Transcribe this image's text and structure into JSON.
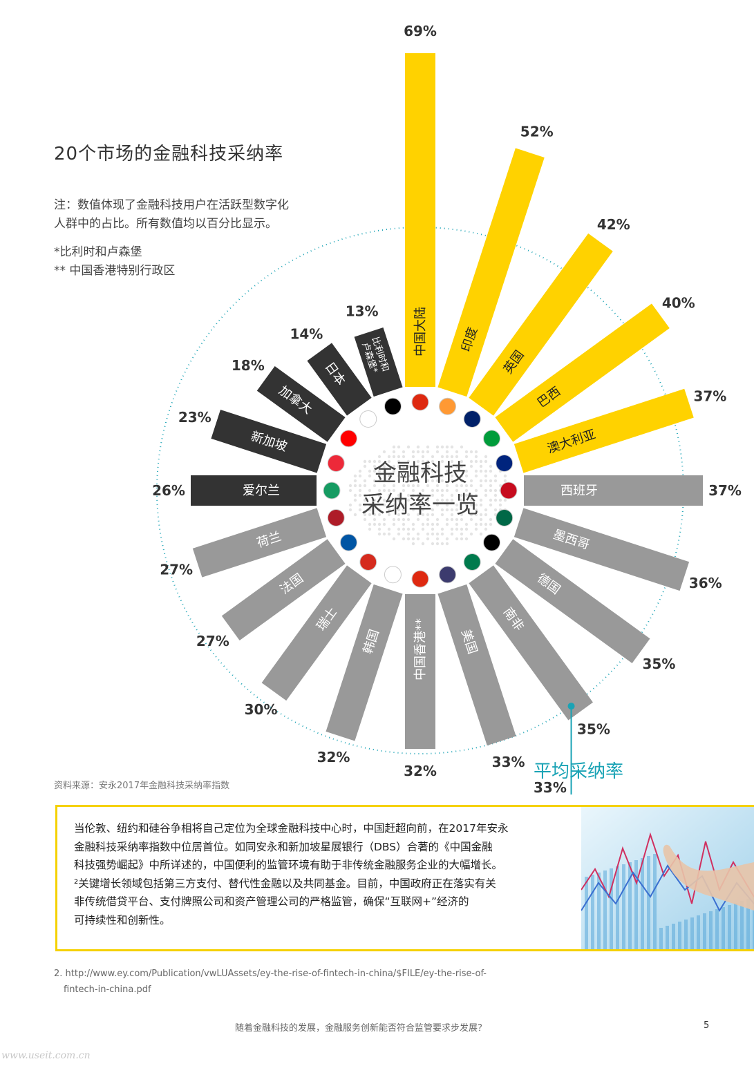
{
  "header": {
    "title": "20个市场的金融科技采纳率",
    "note_line1": "注：数值体现了金融科技用户在活跃型数字化",
    "note_line2": "人群中的占比。所有数值均以百分比显示。",
    "footnote_star1": "*比利时和卢森堡",
    "footnote_star2": "** 中国香港特别行政区"
  },
  "center": {
    "line1": "金融科技",
    "line2": "采纳率一览"
  },
  "colors": {
    "top": "#ffd200",
    "mid": "#333333",
    "low": "#999999",
    "accent": "#1aa3b5",
    "border": "#f5d100"
  },
  "chart_data": {
    "type": "bar",
    "categories": [
      "中国大陆",
      "印度",
      "英国",
      "巴西",
      "澳大利亚",
      "西班牙",
      "墨西哥",
      "德国",
      "南非",
      "美国",
      "中国香港**",
      "韩国",
      "瑞士",
      "法国",
      "荷兰",
      "爱尔兰",
      "新加坡",
      "加拿大",
      "日本",
      "比利时和卢森堡*"
    ],
    "values": [
      69,
      52,
      42,
      40,
      37,
      37,
      36,
      35,
      35,
      33,
      32,
      32,
      30,
      27,
      27,
      26,
      23,
      18,
      14,
      13
    ],
    "value_labels": [
      "69%",
      "52%",
      "42%",
      "40%",
      "37%",
      "37%",
      "36%",
      "35%",
      "35%",
      "33%",
      "32%",
      "32%",
      "30%",
      "27%",
      "27%",
      "26%",
      "23%",
      "18%",
      "14%",
      "13%"
    ],
    "bar_label_lines": [
      [
        "中国大陆"
      ],
      [
        "印度"
      ],
      [
        "英国"
      ],
      [
        "巴西"
      ],
      [
        "澳大利亚"
      ],
      [
        "西班牙"
      ],
      [
        "墨西哥"
      ],
      [
        "德国"
      ],
      [
        "南非"
      ],
      [
        "美国"
      ],
      [
        "中国香港**"
      ],
      [
        "韩国"
      ],
      [
        "瑞士"
      ],
      [
        "法国"
      ],
      [
        "荷兰"
      ],
      [
        "爱尔兰"
      ],
      [
        "新加坡"
      ],
      [
        "加拿大"
      ],
      [
        "日本"
      ],
      [
        "比利时和",
        "卢森堡*"
      ]
    ],
    "flag_icons": [
      "china-flag-icon",
      "india-flag-icon",
      "uk-flag-icon",
      "brazil-flag-icon",
      "australia-flag-icon",
      "spain-flag-icon",
      "mexico-flag-icon",
      "germany-flag-icon",
      "south-africa-flag-icon",
      "usa-flag-icon",
      "hong-kong-flag-icon",
      "korea-flag-icon",
      "switzerland-flag-icon",
      "france-flag-icon",
      "netherlands-flag-icon",
      "ireland-flag-icon",
      "singapore-flag-icon",
      "canada-flag-icon",
      "japan-flag-icon",
      "belgium-luxembourg-flag-icon"
    ],
    "average": 33
  },
  "average": {
    "label": "平均采纳率",
    "value": "33%"
  },
  "source": "资料来源：安永2017年金融科技采纳率指数",
  "body": {
    "lines": [
      "当伦敦、纽约和硅谷争相将自己定位为全球金融科技中心时，中国赶超向前，在2017年安永",
      "金融科技采纳率指数中位居首位。如同安永和新加坡星展银行（DBS）合著的《中国金融",
      "科技强势崛起》中所详述的，中国便利的监管环境有助于非传统金融服务企业的大幅增长。",
      "²关键增长领域包括第三方支付、替代性金融以及共同基金。目前，中国政府正在落实有关",
      "非传统借贷平台、支付牌照公司和资产管理公司的严格监管，确保“互联网+”经济的",
      "可持续性和创新性。"
    ]
  },
  "footnote": {
    "line1": "2. http://www.ey.com/Publication/vwLUAssets/ey-the-rise-of-fintech-in-china/$FILE/ey-the-rise-of-",
    "line2": "fintech-in-china.pdf"
  },
  "running_footer": "随着金融科技的发展，金融服务创新能否符合监管要求步发展？",
  "page_number": "5",
  "watermark": "www.useit.com.cn"
}
